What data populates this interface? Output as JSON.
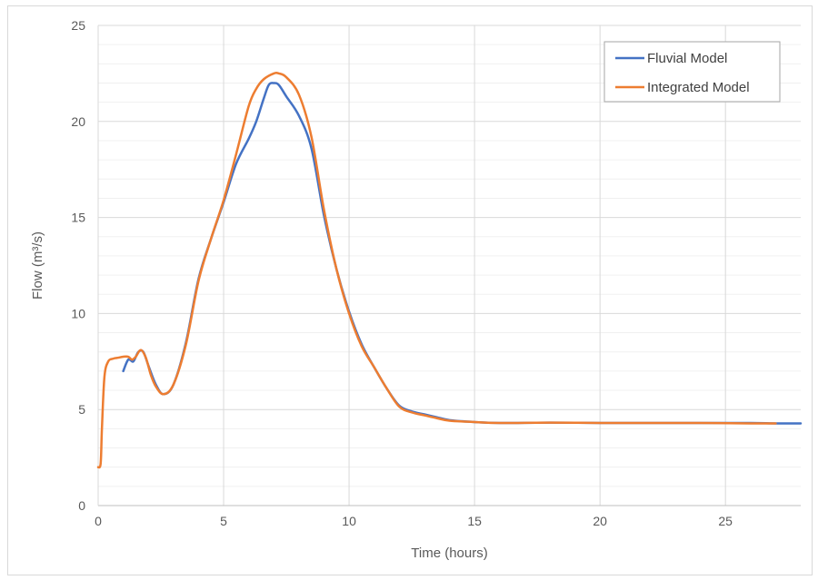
{
  "chart_data": {
    "type": "line",
    "xlabel": "Time (hours)",
    "ylabel": "Flow (m³/s)",
    "xlim": [
      0,
      28
    ],
    "ylim": [
      0,
      25
    ],
    "x_ticks": [
      0,
      5,
      10,
      15,
      20,
      25
    ],
    "y_ticks": [
      0,
      5,
      10,
      15,
      20,
      25
    ],
    "x_tick_labels": [
      "0",
      "5",
      "10",
      "15",
      "20",
      "25"
    ],
    "y_tick_labels": [
      "0",
      "5",
      "10",
      "15",
      "20",
      "25"
    ],
    "grid": {
      "horizontal_major": true,
      "horizontal_minor": true,
      "vertical_major": true
    },
    "legend": "top-right",
    "series": [
      {
        "name": "Fluvial Model",
        "color": "#4472c4",
        "x": [
          1.0,
          1.2,
          1.4,
          1.6,
          1.8,
          2.0,
          2.3,
          2.6,
          3.0,
          3.5,
          4.0,
          4.5,
          5.0,
          5.5,
          6.0,
          6.3,
          6.6,
          6.8,
          7.0,
          7.2,
          7.5,
          8.0,
          8.5,
          9.0,
          9.5,
          10.0,
          10.5,
          11.0,
          11.5,
          12.0,
          12.5,
          13.0,
          13.5,
          14.0,
          15.0,
          16.0,
          18.0,
          20.0,
          22.0,
          24.0,
          26.0,
          27.0,
          28.0
        ],
        "y": [
          7.0,
          7.6,
          7.5,
          8.0,
          8.0,
          7.3,
          6.3,
          5.8,
          6.3,
          8.5,
          11.8,
          13.9,
          15.8,
          17.8,
          19.1,
          20.0,
          21.2,
          21.9,
          22.0,
          21.9,
          21.3,
          20.3,
          18.6,
          15.1,
          12.3,
          10.1,
          8.4,
          7.2,
          6.1,
          5.2,
          4.9,
          4.75,
          4.6,
          4.45,
          4.35,
          4.3,
          4.32,
          4.3,
          4.3,
          4.3,
          4.3,
          4.28,
          4.28
        ]
      },
      {
        "name": "Integrated Model",
        "color": "#ed7d31",
        "x": [
          0.0,
          0.1,
          0.15,
          0.25,
          0.4,
          0.6,
          0.8,
          1.0,
          1.2,
          1.35,
          1.5,
          1.7,
          1.9,
          2.1,
          2.3,
          2.6,
          3.0,
          3.5,
          4.0,
          4.5,
          5.0,
          5.5,
          6.0,
          6.3,
          6.6,
          7.0,
          7.2,
          7.5,
          8.0,
          8.5,
          9.0,
          9.5,
          10.0,
          10.5,
          11.0,
          11.5,
          12.0,
          12.5,
          13.0,
          13.5,
          14.0,
          15.0,
          16.0,
          18.0,
          20.0,
          22.0,
          24.0,
          26.0,
          27.0
        ],
        "y": [
          2.0,
          2.2,
          4.0,
          6.7,
          7.5,
          7.65,
          7.7,
          7.75,
          7.75,
          7.6,
          7.75,
          8.1,
          7.7,
          6.8,
          6.2,
          5.8,
          6.3,
          8.4,
          11.7,
          13.9,
          15.9,
          18.3,
          20.8,
          21.7,
          22.2,
          22.5,
          22.5,
          22.3,
          21.4,
          19.2,
          15.4,
          12.3,
          10.0,
          8.3,
          7.2,
          6.1,
          5.15,
          4.85,
          4.7,
          4.55,
          4.42,
          4.35,
          4.3,
          4.32,
          4.3,
          4.3,
          4.3,
          4.28,
          4.28
        ]
      }
    ]
  }
}
